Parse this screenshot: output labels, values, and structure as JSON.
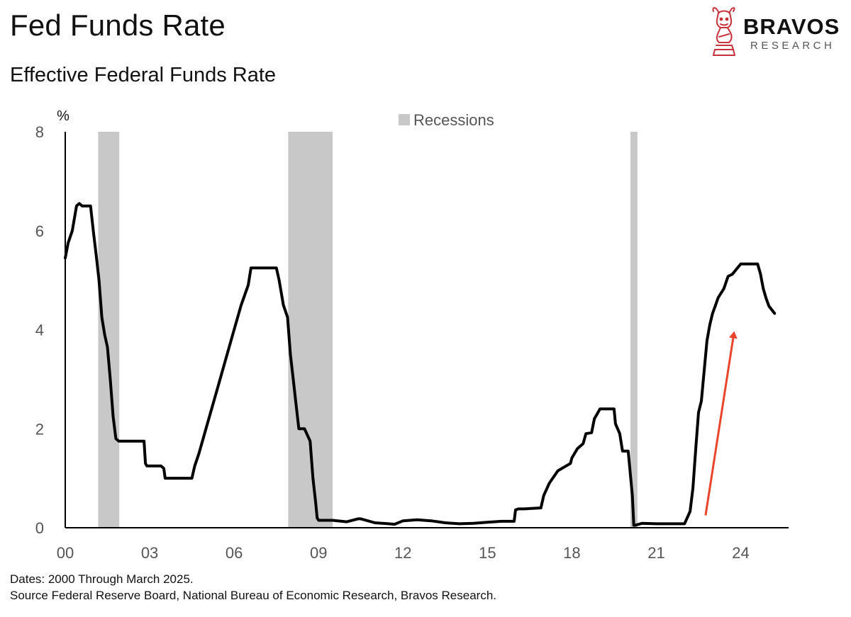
{
  "header": {
    "title": "Fed Funds Rate",
    "subtitle": "Effective Federal Funds Rate"
  },
  "brand": {
    "name": "BRAVOS",
    "tagline": "RESEARCH",
    "icon": "bull-chess-knight-icon",
    "color": "#c8323a"
  },
  "footer": {
    "dates": "Dates: 2000 Through March 2025.",
    "source": "Source Federal Reserve Board, National Bureau of Economic Research, Bravos Research."
  },
  "chart_data": {
    "type": "line",
    "title": "Fed Funds Rate",
    "subtitle": "Effective Federal Funds Rate",
    "ylabel": "%",
    "xlabel": "",
    "xlim": [
      2000,
      2025.7
    ],
    "ylim": [
      0,
      8
    ],
    "yticks": [
      0,
      2,
      4,
      6,
      8
    ],
    "ytick_labels": [
      "0",
      "2",
      "4",
      "6",
      "8"
    ],
    "xticks": [
      2000,
      2003,
      2006,
      2009,
      2012,
      2015,
      2018,
      2021,
      2024
    ],
    "xtick_labels": [
      "00",
      "03",
      "06",
      "09",
      "12",
      "15",
      "18",
      "21",
      "24"
    ],
    "grid": false,
    "legend": {
      "position": "top-center",
      "entries": [
        "Recessions"
      ]
    },
    "recessions": [
      {
        "name": "Recessions",
        "start": 2001.17,
        "end": 2001.92
      },
      {
        "name": "Recessions",
        "start": 2007.92,
        "end": 2009.5
      },
      {
        "name": "Recessions",
        "start": 2020.08,
        "end": 2020.33
      }
    ],
    "colors": {
      "line": "#000000",
      "recession": "#c8c8c8",
      "arrow": "#e8452c",
      "tick_text": "#555555"
    },
    "annotation": {
      "type": "arrow",
      "from": [
        2022.75,
        0.25
      ],
      "to": [
        2023.75,
        3.9
      ]
    },
    "series": [
      {
        "name": "Effective Federal Funds Rate",
        "x": [
          2000.0,
          2000.1,
          2000.25,
          2000.4,
          2000.5,
          2000.6,
          2000.75,
          2000.9,
          2001.0,
          2001.1,
          2001.2,
          2001.3,
          2001.4,
          2001.5,
          2001.6,
          2001.7,
          2001.8,
          2001.9,
          2002.0,
          2002.3,
          2002.6,
          2002.8,
          2002.85,
          2002.9,
          2003.2,
          2003.4,
          2003.5,
          2003.55,
          2003.9,
          2004.2,
          2004.5,
          2004.6,
          2004.75,
          2005.0,
          2005.25,
          2005.5,
          2005.75,
          2006.0,
          2006.25,
          2006.5,
          2006.6,
          2007.0,
          2007.5,
          2007.6,
          2007.75,
          2007.9,
          2008.0,
          2008.1,
          2008.2,
          2008.3,
          2008.5,
          2008.7,
          2008.8,
          2008.9,
          2008.95,
          2009.0,
          2009.5,
          2010.0,
          2010.4,
          2010.5,
          2011.0,
          2011.5,
          2011.7,
          2012.0,
          2012.5,
          2013.0,
          2013.5,
          2014.0,
          2014.5,
          2015.0,
          2015.5,
          2015.95,
          2016.0,
          2016.1,
          2016.3,
          2016.9,
          2017.0,
          2017.2,
          2017.5,
          2017.95,
          2018.0,
          2018.2,
          2018.4,
          2018.5,
          2018.7,
          2018.8,
          2019.0,
          2019.2,
          2019.5,
          2019.55,
          2019.7,
          2019.8,
          2019.85,
          2020.0,
          2020.15,
          2020.2,
          2020.25,
          2020.5,
          2021.0,
          2021.5,
          2022.0,
          2022.2,
          2022.3,
          2022.4,
          2022.5,
          2022.6,
          2022.8,
          2022.9,
          2023.0,
          2023.2,
          2023.4,
          2023.55,
          2023.7,
          2024.0,
          2024.5,
          2024.6,
          2024.7,
          2024.8,
          2024.9,
          2025.0,
          2025.2
        ],
        "values": [
          5.45,
          5.75,
          6.0,
          6.5,
          6.55,
          6.5,
          6.5,
          6.5,
          5.98,
          5.5,
          5.0,
          4.25,
          3.9,
          3.65,
          3.0,
          2.25,
          1.8,
          1.75,
          1.75,
          1.75,
          1.75,
          1.75,
          1.3,
          1.25,
          1.25,
          1.25,
          1.2,
          1.0,
          1.0,
          1.0,
          1.0,
          1.25,
          1.5,
          2.0,
          2.5,
          3.0,
          3.5,
          4.0,
          4.5,
          4.9,
          5.25,
          5.25,
          5.25,
          5.0,
          4.5,
          4.25,
          3.5,
          3.0,
          2.5,
          2.0,
          2.0,
          1.75,
          1.0,
          0.5,
          0.2,
          0.15,
          0.15,
          0.12,
          0.18,
          0.18,
          0.1,
          0.08,
          0.07,
          0.14,
          0.16,
          0.14,
          0.1,
          0.08,
          0.09,
          0.11,
          0.13,
          0.13,
          0.36,
          0.38,
          0.38,
          0.4,
          0.65,
          0.9,
          1.15,
          1.3,
          1.41,
          1.6,
          1.7,
          1.9,
          1.92,
          2.2,
          2.4,
          2.4,
          2.4,
          2.1,
          1.9,
          1.55,
          1.55,
          1.55,
          0.65,
          0.05,
          0.05,
          0.09,
          0.08,
          0.08,
          0.08,
          0.33,
          0.8,
          1.58,
          2.33,
          2.56,
          3.78,
          4.1,
          4.33,
          4.65,
          4.83,
          5.08,
          5.12,
          5.33,
          5.33,
          5.33,
          5.13,
          4.83,
          4.64,
          4.48,
          4.33
        ]
      }
    ]
  }
}
